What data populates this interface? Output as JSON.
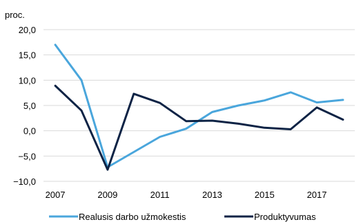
{
  "chart_data": {
    "type": "line",
    "ylabel": "proc.",
    "x": [
      2007,
      2008,
      2009,
      2010,
      2011,
      2012,
      2013,
      2014,
      2015,
      2016,
      2017,
      2018
    ],
    "x_tick_labels": [
      "2007",
      "2009",
      "2011",
      "2013",
      "2015",
      "2017"
    ],
    "y_tick_labels": [
      "20,0",
      "15,0",
      "10,0",
      "5,0",
      "0,0",
      "−5,0",
      "−10,0"
    ],
    "ylim": [
      -10,
      20
    ],
    "grid": "horizontal",
    "legend_position": "bottom",
    "series": [
      {
        "name": "Realusis darbo užmokestis",
        "color": "#4aa6dc",
        "values": [
          17.0,
          10.0,
          -7.2,
          -4.2,
          -1.2,
          0.4,
          3.7,
          5.0,
          6.0,
          7.6,
          5.6,
          6.1
        ]
      },
      {
        "name": "Produktyvumas",
        "color": "#0d2345",
        "values": [
          8.9,
          4.0,
          -7.7,
          7.3,
          5.5,
          1.9,
          2.0,
          1.4,
          0.6,
          0.3,
          4.6,
          2.2
        ]
      }
    ]
  }
}
